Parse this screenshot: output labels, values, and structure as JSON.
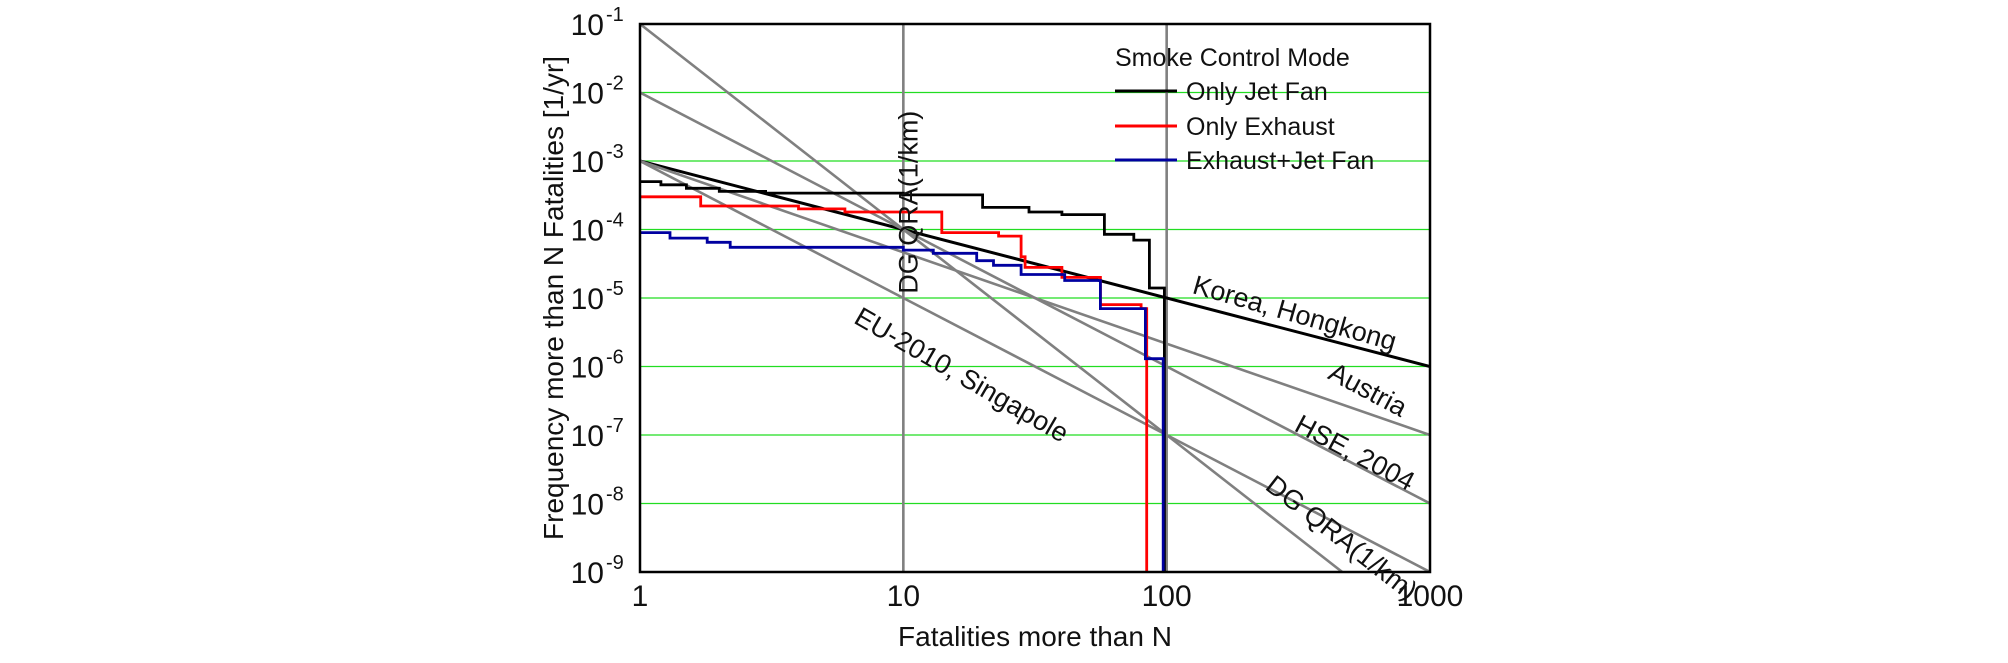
{
  "chart_data": {
    "type": "line",
    "xlabel": "Fatalities more than N",
    "ylabel": "Frequency more than N Fatalities [1/yr]",
    "x_scale": "log",
    "y_scale": "log",
    "xlim": [
      1,
      1000
    ],
    "ylim": [
      1e-09,
      0.1
    ],
    "grid": true,
    "x_ticks": [
      {
        "value": 1,
        "label": "1"
      },
      {
        "value": 10,
        "label": "10"
      },
      {
        "value": 100,
        "label": "100"
      },
      {
        "value": 1000,
        "label": "1000"
      }
    ],
    "y_ticks": [
      {
        "value": 1e-09,
        "base": "10",
        "exp": "-9"
      },
      {
        "value": 1e-08,
        "base": "10",
        "exp": "-8"
      },
      {
        "value": 1e-07,
        "base": "10",
        "exp": "-7"
      },
      {
        "value": 1e-06,
        "base": "10",
        "exp": "-6"
      },
      {
        "value": 1e-05,
        "base": "10",
        "exp": "-5"
      },
      {
        "value": 0.0001,
        "base": "10",
        "exp": "-4"
      },
      {
        "value": 0.001,
        "base": "10",
        "exp": "-3"
      },
      {
        "value": 0.01,
        "base": "10",
        "exp": "-2"
      },
      {
        "value": 0.1,
        "base": "10",
        "exp": "-1"
      }
    ],
    "legend": {
      "title": "Smoke Control Mode",
      "placement": "top-right",
      "entries": [
        "Only Jet Fan",
        "Only Exhaust",
        "Exhaust+Jet Fan"
      ]
    },
    "series": [
      {
        "name": "Only Jet Fan",
        "color": "#000000",
        "style": "step",
        "points": [
          [
            1,
            0.0005
          ],
          [
            1.2,
            0.0005
          ],
          [
            1.2,
            0.00045
          ],
          [
            1.5,
            0.00045
          ],
          [
            1.5,
            0.0004
          ],
          [
            2,
            0.0004
          ],
          [
            2,
            0.00036
          ],
          [
            3,
            0.00036
          ],
          [
            3,
            0.00034
          ],
          [
            10,
            0.00034
          ],
          [
            10,
            0.00032
          ],
          [
            20,
            0.00032
          ],
          [
            20,
            0.00021
          ],
          [
            30,
            0.00021
          ],
          [
            30,
            0.00018
          ],
          [
            40,
            0.00018
          ],
          [
            40,
            0.000165
          ],
          [
            58,
            0.000165
          ],
          [
            58,
            8.5e-05
          ],
          [
            75,
            8.5e-05
          ],
          [
            75,
            7e-05
          ],
          [
            86,
            7e-05
          ],
          [
            86,
            1.4e-05
          ],
          [
            98,
            1.4e-05
          ],
          [
            98,
            1e-09
          ]
        ]
      },
      {
        "name": "Only Exhaust",
        "color": "#ff0000",
        "style": "step",
        "points": [
          [
            1,
            0.0003
          ],
          [
            1.7,
            0.0003
          ],
          [
            1.7,
            0.00022
          ],
          [
            4,
            0.00022
          ],
          [
            4,
            0.0002
          ],
          [
            6,
            0.0002
          ],
          [
            6,
            0.00018
          ],
          [
            14,
            0.00018
          ],
          [
            14,
            9e-05
          ],
          [
            23,
            9e-05
          ],
          [
            23,
            8e-05
          ],
          [
            28,
            8e-05
          ],
          [
            28,
            4e-05
          ],
          [
            29,
            4e-05
          ],
          [
            29,
            2.8e-05
          ],
          [
            40,
            2.8e-05
          ],
          [
            40,
            2e-05
          ],
          [
            56,
            2e-05
          ],
          [
            56,
            8e-06
          ],
          [
            80,
            8e-06
          ],
          [
            80,
            7e-06
          ],
          [
            84,
            7e-06
          ],
          [
            84,
            1e-09
          ]
        ]
      },
      {
        "name": "Exhaust+Jet Fan",
        "color": "#0000a0",
        "style": "step",
        "points": [
          [
            1,
            9e-05
          ],
          [
            1.3,
            9e-05
          ],
          [
            1.3,
            7.5e-05
          ],
          [
            1.8,
            7.5e-05
          ],
          [
            1.8,
            6.5e-05
          ],
          [
            2.2,
            6.5e-05
          ],
          [
            2.2,
            5.5e-05
          ],
          [
            10,
            5.5e-05
          ],
          [
            10,
            5e-05
          ],
          [
            13,
            5e-05
          ],
          [
            13,
            4.5e-05
          ],
          [
            19,
            4.5e-05
          ],
          [
            19,
            3.5e-05
          ],
          [
            22,
            3.5e-05
          ],
          [
            22,
            3e-05
          ],
          [
            28,
            3e-05
          ],
          [
            28,
            2.2e-05
          ],
          [
            41,
            2.2e-05
          ],
          [
            41,
            1.8e-05
          ],
          [
            56,
            1.8e-05
          ],
          [
            56,
            7e-06
          ],
          [
            83,
            7e-06
          ],
          [
            83,
            1.3e-06
          ],
          [
            97,
            1.3e-06
          ],
          [
            97,
            1e-09
          ]
        ]
      }
    ],
    "criteria_lines": [
      {
        "label": "Korea, Hongkong",
        "color": "#000000",
        "points": [
          [
            1,
            0.001
          ],
          [
            1000,
            1e-06
          ]
        ]
      },
      {
        "label": "Austria",
        "color": "#808080",
        "points": [
          [
            1,
            0.001
          ],
          [
            1000,
            1e-07
          ]
        ]
      },
      {
        "label": "HSE, 2004",
        "color": "#808080",
        "points": [
          [
            1,
            0.01
          ],
          [
            1000,
            1e-08
          ]
        ]
      },
      {
        "label": "DG QRA(1/km)",
        "color": "#808080",
        "points": [
          [
            1,
            0.1
          ],
          [
            1000,
            1e-10
          ]
        ]
      },
      {
        "label": "EU-2010, Singapole",
        "color": "#808080",
        "points": [
          [
            1,
            0.001
          ],
          [
            1000,
            1e-09
          ]
        ]
      }
    ],
    "vertical_lines": [
      {
        "x": 10,
        "label": "DG QRA(1/km)",
        "color": "#808080"
      },
      {
        "x": 100,
        "color": "#808080"
      }
    ],
    "annotations": [
      {
        "text": "Korea, Hongkong",
        "anchor": [
          300,
          4.5e-06
        ],
        "angle": 16
      },
      {
        "text": "Austria",
        "anchor": [
          560,
          3.5e-07
        ],
        "angle": 28
      },
      {
        "text": "HSE, 2004",
        "anchor": [
          500,
          4.2e-08
        ],
        "angle": 28
      },
      {
        "text": "DG QRA(1/km)",
        "anchor": [
          440,
          2.5e-09
        ],
        "angle": 38
      },
      {
        "text": "EU-2010, Singapole",
        "anchor": [
          16,
          5.8e-07
        ],
        "angle": 30
      },
      {
        "text": "DG QRA(1/km)",
        "anchor": [
          11.3,
          0.00025
        ],
        "angle": -90
      }
    ]
  }
}
